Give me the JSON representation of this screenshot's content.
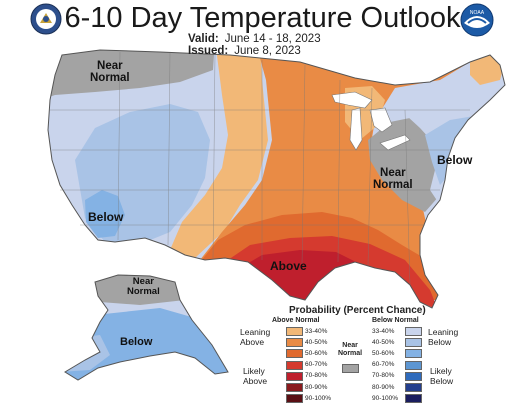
{
  "header": {
    "title": "6-10 Day Temperature Outlook",
    "valid_label": "Valid:",
    "valid_value": "June 14 - 18, 2023",
    "issued_label": "Issued:",
    "issued_value": "June 8, 2023"
  },
  "logos": {
    "left": "department-seal-icon",
    "right": "noaa-logo-icon",
    "noaa_text": "NOAA"
  },
  "map_labels": {
    "near_normal_nw": [
      "Near",
      "Normal"
    ],
    "below_sw": "Below",
    "above_south": "Above",
    "near_normal_east": [
      "Near",
      "Normal"
    ],
    "below_ne": "Below",
    "near_normal_ak": [
      "Near",
      "Normal"
    ],
    "below_ak": "Below"
  },
  "legend": {
    "title": "Probability (Percent Chance)",
    "above_header": "Above Normal",
    "below_header": "Below Normal",
    "near_normal_label": [
      "Near",
      "Normal"
    ],
    "leaning_above": [
      "Leaning",
      "Above"
    ],
    "likely_above": [
      "Likely",
      "Above"
    ],
    "leaning_below": [
      "Leaning",
      "Below"
    ],
    "likely_below": [
      "Likely",
      "Below"
    ],
    "ranges": [
      "33-40%",
      "40-50%",
      "50-60%",
      "60-70%",
      "70-80%",
      "80-90%",
      "90-100%"
    ],
    "above_colors": [
      "#f2b877",
      "#e98b45",
      "#e06a2f",
      "#d53a2f",
      "#bf1f2d",
      "#8a1a1e",
      "#5a0f14"
    ],
    "below_colors": [
      "#c9d4ec",
      "#a9c3e6",
      "#84b2e4",
      "#5d96d2",
      "#2f6bbc",
      "#243f8d",
      "#1a1d5e"
    ],
    "near_color": "#a3a3a3"
  }
}
